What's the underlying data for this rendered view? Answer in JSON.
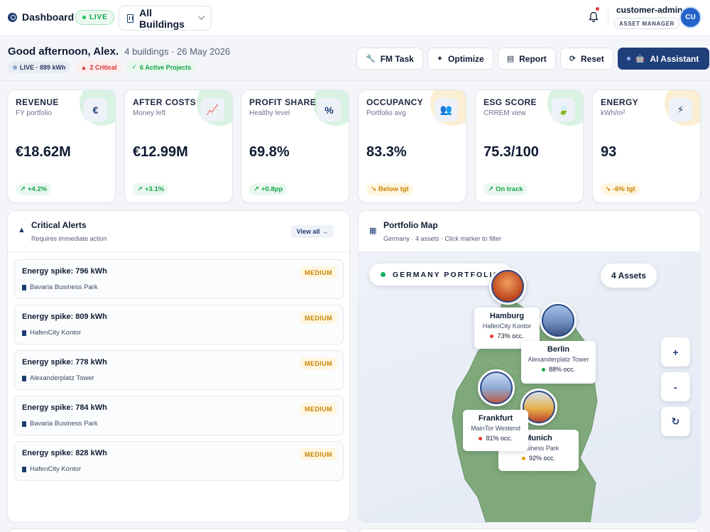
{
  "topbar": {
    "title": "Dashboard",
    "live_label": "LIVE",
    "building_select": "All Buildings",
    "user_name": "customer-admin",
    "user_role": "ASSET MANAGER",
    "avatar_initials": "CU"
  },
  "header": {
    "greeting": "Good afternoon, Alex.",
    "subline": "4 buildings · 26 May 2026",
    "badges": {
      "live": "LIVE · 889 kWh",
      "critical": "2 Critical",
      "projects": "6 Active Projects"
    },
    "actions": {
      "fm_task": "FM Task",
      "optimize": "Optimize",
      "report": "Report",
      "reset": "Reset",
      "ai_assistant": "AI Assistant"
    }
  },
  "kpis": [
    {
      "title": "REVENUE",
      "sub": "FY portfolio",
      "value": "€18.62M",
      "delta": "+4.2%",
      "trend": "up",
      "icon": "euro-icon",
      "glyph": "€",
      "accent": "#d9f2e3"
    },
    {
      "title": "AFTER COSTS",
      "sub": "Money left",
      "value": "€12.99M",
      "delta": "+3.1%",
      "trend": "up",
      "icon": "chart-line-icon",
      "glyph": "📈",
      "accent": "#d9f2e3"
    },
    {
      "title": "PROFIT SHARE",
      "sub": "Healthy level",
      "value": "69.8%",
      "delta": "+0.8pp",
      "trend": "up",
      "icon": "percent-icon",
      "glyph": "%",
      "accent": "#d9f2e3"
    },
    {
      "title": "OCCUPANCY",
      "sub": "Portfolio avg",
      "value": "83.3%",
      "delta": "Below tgt",
      "trend": "warn",
      "icon": "users-icon",
      "glyph": "👥",
      "accent": "#fbeed2"
    },
    {
      "title": "ESG SCORE",
      "sub": "CRREM view",
      "value": "75.3/100",
      "delta": "On track",
      "trend": "up",
      "icon": "leaf-icon",
      "glyph": "🍃",
      "accent": "#d9f2e3"
    },
    {
      "title": "ENERGY",
      "sub": "kWh/m²",
      "value": "93",
      "delta": "-6% tgt",
      "trend": "warn",
      "icon": "bolt-icon",
      "glyph": "⚡",
      "accent": "#fbeed2"
    }
  ],
  "alerts": {
    "title": "Critical Alerts",
    "subtitle": "Requires immediate action",
    "view_all": "View all →",
    "items": [
      {
        "title": "Energy spike: 796 kWh",
        "location": "Bavaria Business Park",
        "severity": "MEDIUM"
      },
      {
        "title": "Energy spike: 809 kWh",
        "location": "HafenCity Kontor",
        "severity": "MEDIUM"
      },
      {
        "title": "Energy spike: 778 kWh",
        "location": "Alexanderplatz Tower",
        "severity": "MEDIUM"
      },
      {
        "title": "Energy spike: 784 kWh",
        "location": "Bavaria Business Park",
        "severity": "MEDIUM"
      },
      {
        "title": "Energy spike: 828 kWh",
        "location": "HafenCity Kontor",
        "severity": "MEDIUM"
      }
    ]
  },
  "map": {
    "title": "Portfolio Map",
    "subtitle": "Germany · 4 assets · Click marker to filter",
    "region_label": "GERMANY PORTFOLIO",
    "asset_count": "4 Assets",
    "zoom_in": "+",
    "zoom_out": "-",
    "reset_glyph": "↻",
    "land_color": "#7fa97a",
    "assets": [
      {
        "city": "Hamburg",
        "building": "HafenCity Kontor",
        "occupancy": "73% occ.",
        "status_color": "#e53935"
      },
      {
        "city": "Berlin",
        "building": "Alexanderplatz Tower",
        "occupancy": "88% occ.",
        "status_color": "#16a34a"
      },
      {
        "city": "Frankfurt",
        "building": "MainTor Westend",
        "occupancy": "81% occ.",
        "status_color": "#e53935"
      },
      {
        "city": "Munich",
        "building": "Business Park",
        "occupancy": "92% occ.",
        "status_color": "#e0a106"
      }
    ]
  }
}
